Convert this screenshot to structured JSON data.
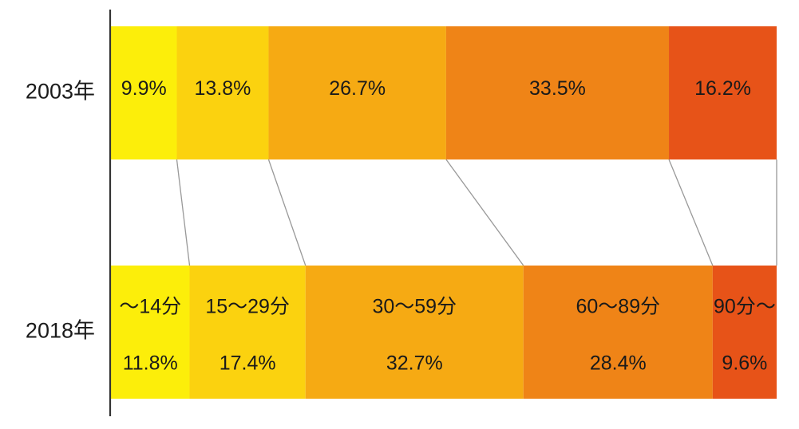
{
  "chart_data": {
    "type": "bar",
    "orientation": "horizontal",
    "stacked": true,
    "normalized_to_percent": true,
    "categories": [
      "2003年",
      "2018年"
    ],
    "series": [
      {
        "name": "〜14分",
        "values": [
          9.9,
          11.8
        ],
        "color": "#fcee0a"
      },
      {
        "name": "15〜29分",
        "values": [
          13.8,
          17.4
        ],
        "color": "#fbd20f"
      },
      {
        "name": "30〜59分",
        "values": [
          26.7,
          32.7
        ],
        "color": "#f6aa13"
      },
      {
        "name": "60〜89分",
        "values": [
          33.5,
          28.4
        ],
        "color": "#ef8417"
      },
      {
        "name": "90分〜",
        "values": [
          16.2,
          9.6
        ],
        "color": "#e75318"
      }
    ],
    "value_labels": [
      [
        "9.9%",
        "13.8%",
        "26.7%",
        "33.5%",
        "16.2%"
      ],
      [
        "11.8%",
        "17.4%",
        "32.7%",
        "28.4%",
        "9.6%"
      ]
    ],
    "category_labels_shown_on_bar": "2018年",
    "connector_lines": true,
    "connector_color": "#999999",
    "axis_color": "#333333"
  }
}
